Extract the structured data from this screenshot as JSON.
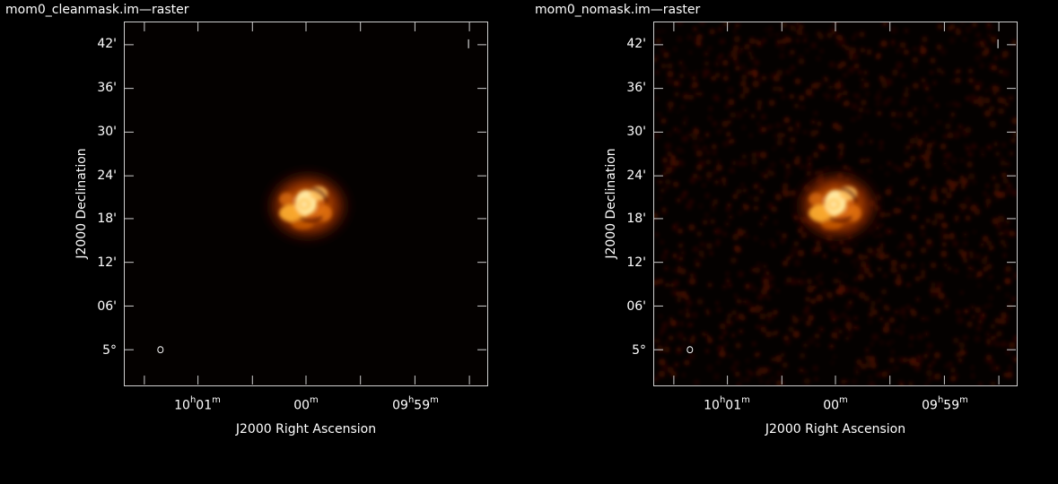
{
  "panels": [
    {
      "title": "mom0_cleanmask.im—raster",
      "xlabel": "J2000 Right Ascension",
      "ylabel": "J2000 Declination",
      "noise": false
    },
    {
      "title": "mom0_nomask.im—raster",
      "xlabel": "J2000 Right Ascension",
      "ylabel": "J2000 Declination",
      "noise": true
    }
  ],
  "axes": {
    "dec_ticks": [
      "42'",
      "36'",
      "30'",
      "24'",
      "18'",
      "12'",
      "06'",
      "5°"
    ],
    "ra_ticks": [
      {
        "h": "10",
        "hu": "h",
        "m": "01",
        "mu": "m"
      },
      {
        "h": "",
        "hu": "",
        "m": "00",
        "mu": "m"
      },
      {
        "h": "09",
        "hu": "h",
        "m": "59",
        "mu": "m"
      }
    ]
  },
  "colors": {
    "background": "#000000",
    "frame": "#cfcfcf",
    "colormap": "hot"
  }
}
